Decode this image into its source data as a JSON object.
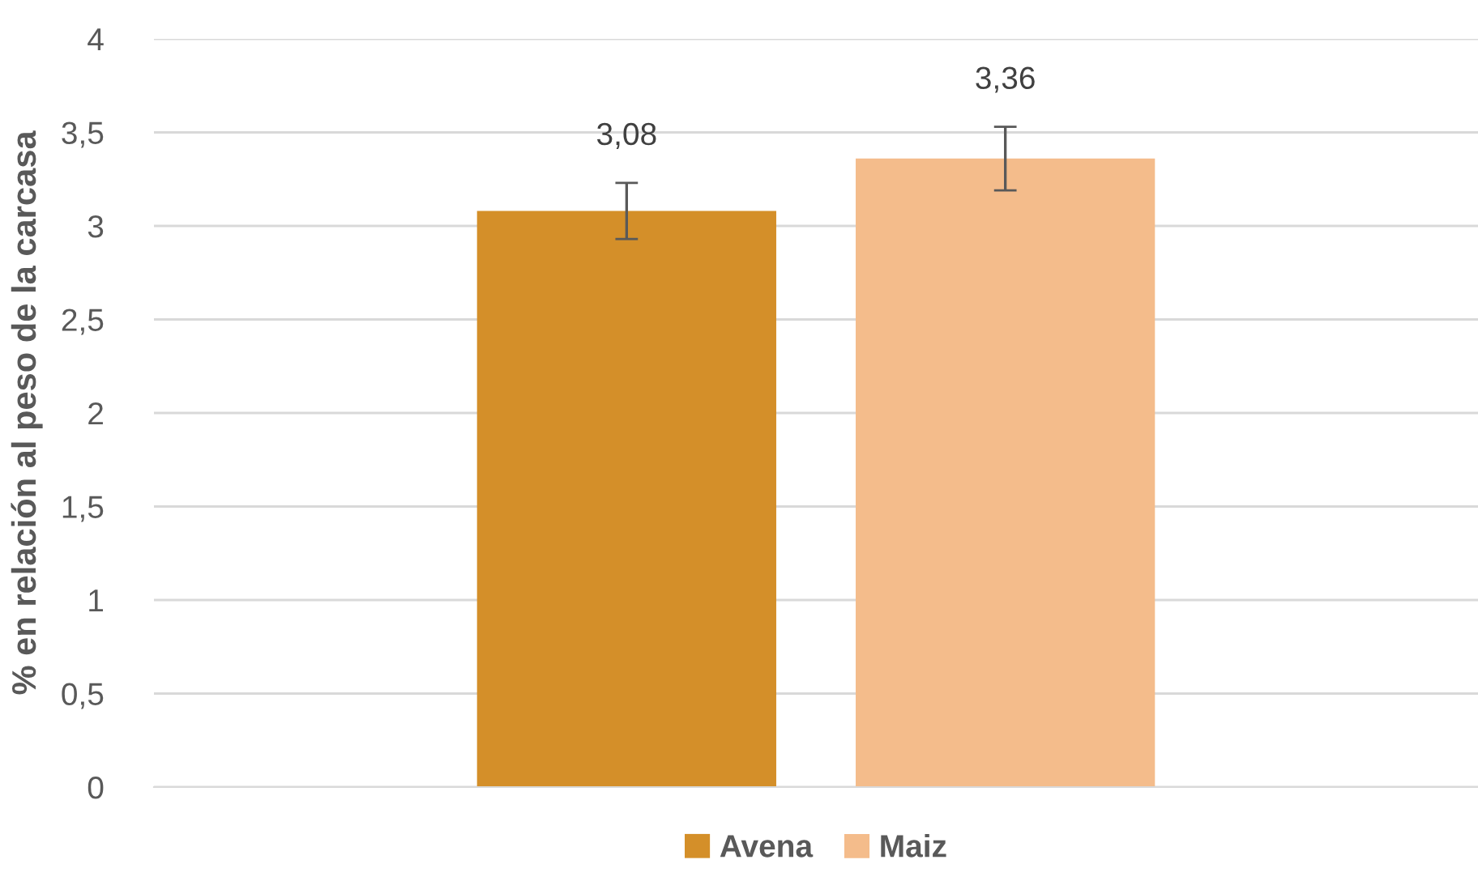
{
  "chart_data": {
    "type": "bar",
    "ylabel": "% en relación al peso de la carcasa",
    "categories": [
      null
    ],
    "series": [
      {
        "name": "Avena",
        "color": "#d48f29",
        "values": [
          3.08
        ],
        "errors": [
          0.15
        ],
        "value_labels": [
          "3,08"
        ]
      },
      {
        "name": "Maiz",
        "color": "#f4bc8b",
        "values": [
          3.36
        ],
        "errors": [
          0.17
        ],
        "value_labels": [
          "3,36"
        ]
      }
    ],
    "ylim": [
      0,
      4
    ],
    "yticks": [
      0,
      {
        "value": 0.5,
        "label": "0,5"
      },
      1,
      {
        "value": 1.5,
        "label": "1,5"
      },
      2,
      {
        "value": 2.5,
        "label": "2,5"
      },
      3,
      {
        "value": 3.5,
        "label": "3,5"
      },
      4
    ],
    "grid": "y",
    "legend": "bottom"
  }
}
